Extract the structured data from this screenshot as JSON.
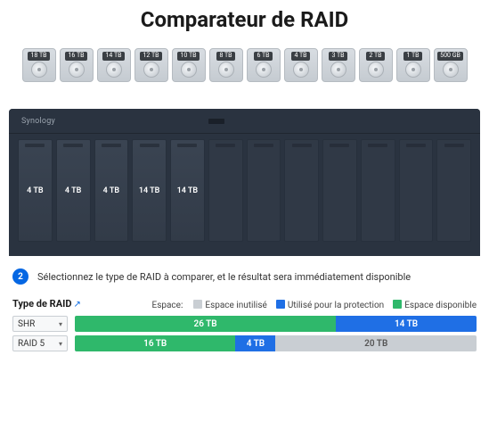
{
  "title": "Comparateur de RAID",
  "colors": {
    "unused": "#c9ced3",
    "protection": "#1f6fe5",
    "available": "#2fb86b",
    "step_badge": "#0567e3",
    "nas_body": "#2a3340",
    "nas_bay_filled": "#3a4452",
    "nas_bay_empty": "#323b48"
  },
  "drive_options": [
    {
      "label": "18 TB"
    },
    {
      "label": "16 TB"
    },
    {
      "label": "14 TB"
    },
    {
      "label": "12 TB"
    },
    {
      "label": "10 TB"
    },
    {
      "label": "8 TB"
    },
    {
      "label": "6 TB"
    },
    {
      "label": "4 TB"
    },
    {
      "label": "3 TB"
    },
    {
      "label": "2 TB"
    },
    {
      "label": "1 TB"
    },
    {
      "label": "500 GB"
    }
  ],
  "nas": {
    "brand": "Synology",
    "bays": [
      {
        "filled": true,
        "label": "4 TB"
      },
      {
        "filled": true,
        "label": "4 TB"
      },
      {
        "filled": true,
        "label": "4 TB"
      },
      {
        "filled": true,
        "label": "14 TB"
      },
      {
        "filled": true,
        "label": "14 TB"
      },
      {
        "filled": false,
        "label": ""
      },
      {
        "filled": false,
        "label": ""
      },
      {
        "filled": false,
        "label": ""
      },
      {
        "filled": false,
        "label": ""
      },
      {
        "filled": false,
        "label": ""
      },
      {
        "filled": false,
        "label": ""
      },
      {
        "filled": false,
        "label": ""
      }
    ]
  },
  "step": {
    "number": "2",
    "text": "Sélectionnez le type de RAID à comparer, et le résultat sera immédiatement disponible"
  },
  "raid_header": {
    "title": "Type de RAID",
    "legend_label": "Espace:",
    "legend": [
      {
        "color": "#c9ced3",
        "label": "Espace inutilisé"
      },
      {
        "color": "#1f6fe5",
        "label": "Utilisé pour la protection"
      },
      {
        "color": "#2fb86b",
        "label": "Espace disponible"
      }
    ]
  },
  "raid_rows": [
    {
      "name": "SHR",
      "total_tb": 40,
      "segments": [
        {
          "kind": "available",
          "tb": 26,
          "label": "26 TB",
          "color": "#2fb86b"
        },
        {
          "kind": "protection",
          "tb": 14,
          "label": "14 TB",
          "color": "#1f6fe5"
        }
      ]
    },
    {
      "name": "RAID 5",
      "total_tb": 40,
      "segments": [
        {
          "kind": "available",
          "tb": 16,
          "label": "16 TB",
          "color": "#2fb86b"
        },
        {
          "kind": "protection",
          "tb": 4,
          "label": "4 TB",
          "color": "#1f6fe5"
        },
        {
          "kind": "unused",
          "tb": 20,
          "label": "20 TB",
          "color": "#c9ced3"
        }
      ]
    }
  ]
}
